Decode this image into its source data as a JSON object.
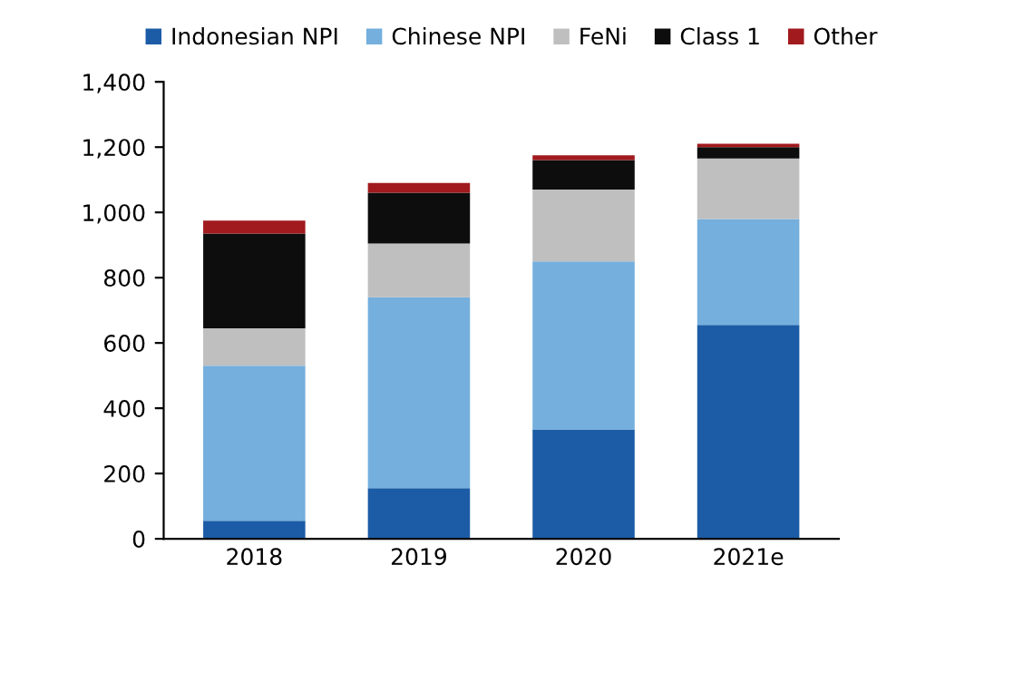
{
  "chart_data": {
    "type": "bar",
    "stacked": true,
    "categories": [
      "2018",
      "2019",
      "2020",
      "2021e"
    ],
    "series": [
      {
        "name": "Indonesian NPI",
        "color": "#1c5ca6",
        "values": [
          55,
          155,
          335,
          655
        ]
      },
      {
        "name": "Chinese NPI",
        "color": "#74afdd",
        "values": [
          475,
          585,
          515,
          325
        ]
      },
      {
        "name": "FeNi",
        "color": "#bfbfbf",
        "values": [
          115,
          165,
          220,
          185
        ]
      },
      {
        "name": "Class 1",
        "color": "#0d0d0d",
        "values": [
          290,
          155,
          90,
          35
        ]
      },
      {
        "name": "Other",
        "color": "#a11a1e",
        "values": [
          40,
          30,
          15,
          10
        ]
      }
    ],
    "ylim": [
      0,
      1400
    ],
    "yticks": [
      0,
      200,
      400,
      600,
      800,
      {
        "value": 1000,
        "label": "1,000"
      },
      {
        "value": 1200,
        "label": "1,200"
      },
      {
        "value": 1400,
        "label": "1,400"
      }
    ],
    "grid": false,
    "legend": "top"
  }
}
